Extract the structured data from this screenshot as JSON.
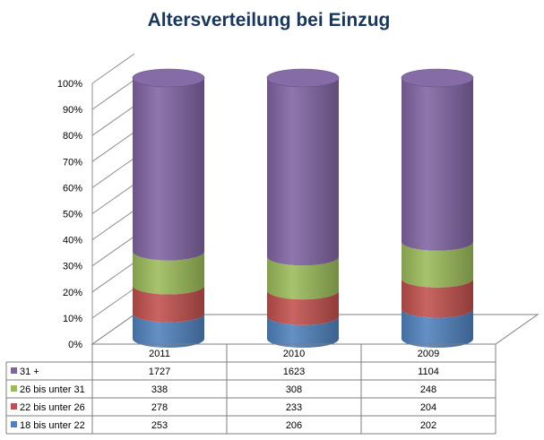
{
  "chart_data": {
    "type": "bar",
    "stacked": "percent",
    "style": "3d-cylinder",
    "title": "Altersverteilung bei Einzug",
    "categories": [
      "2011",
      "2010",
      "2009"
    ],
    "series": [
      {
        "name": "18 bis unter 22",
        "values": [
          253,
          206,
          202
        ],
        "color": "#4f81bd"
      },
      {
        "name": "22 bis unter 26",
        "values": [
          278,
          233,
          204
        ],
        "color": "#c0504d"
      },
      {
        "name": "26 bis unter 31",
        "values": [
          338,
          308,
          248
        ],
        "color": "#9bbb59"
      },
      {
        "name": "31 +",
        "values": [
          1727,
          1623,
          1104
        ],
        "color": "#8064a2"
      }
    ],
    "yticks": [
      "0%",
      "10%",
      "20%",
      "30%",
      "40%",
      "50%",
      "60%",
      "70%",
      "80%",
      "90%",
      "100%"
    ],
    "ylim": [
      0,
      100
    ],
    "grid": true,
    "legend": "data-table"
  }
}
